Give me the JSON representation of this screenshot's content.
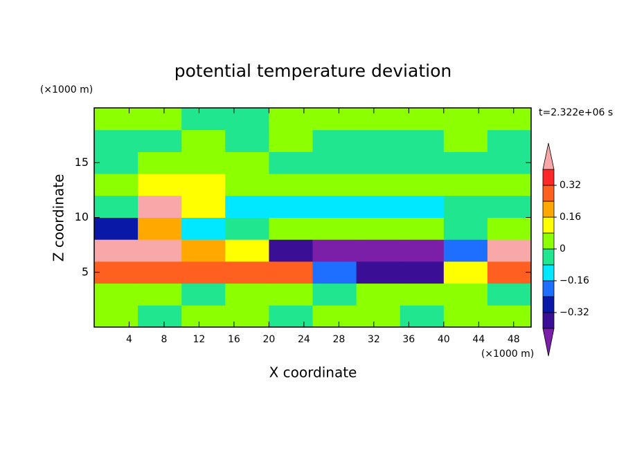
{
  "chart_data": {
    "type": "contour",
    "title": "potential temperature deviation",
    "xlabel": "X coordinate",
    "ylabel": "Z coordinate",
    "xunits": "(×1000 m)",
    "yunits": "(×1000 m)",
    "annotation": "t=2.322e+06 s",
    "xlim": [
      0,
      50
    ],
    "ylim": [
      0,
      20
    ],
    "xticks": [
      4,
      8,
      12,
      16,
      20,
      24,
      28,
      32,
      36,
      40,
      44,
      48
    ],
    "yticks": [
      5,
      10,
      15
    ],
    "x": [
      2.5,
      7.5,
      12.5,
      17.5,
      22.5,
      27.5,
      32.5,
      37.5,
      42.5,
      47.5
    ],
    "z": [
      1,
      3,
      5,
      7,
      9,
      11,
      13,
      15,
      17,
      19
    ],
    "values": [
      [
        0.03,
        -0.02,
        0.03,
        0.03,
        -0.02,
        0.03,
        0.03,
        -0.02,
        0.03,
        0.03
      ],
      [
        0.03,
        0.03,
        -0.02,
        0.03,
        0.03,
        -0.02,
        0.03,
        0.03,
        0.03,
        -0.02
      ],
      [
        0.3,
        0.3,
        0.3,
        0.3,
        0.25,
        -0.2,
        -0.35,
        -0.38,
        0.1,
        0.3
      ],
      [
        0.42,
        0.42,
        0.2,
        0.1,
        -0.36,
        -0.42,
        -0.42,
        -0.42,
        -0.2,
        0.42
      ],
      [
        -0.28,
        0.2,
        -0.1,
        -0.05,
        0.02,
        0.03,
        0.02,
        0.02,
        -0.05,
        0.05
      ],
      [
        -0.05,
        0.42,
        0.1,
        -0.1,
        -0.12,
        -0.15,
        -0.15,
        -0.12,
        -0.08,
        -0.05
      ],
      [
        0.02,
        0.12,
        0.1,
        0.05,
        0.03,
        0.03,
        0.04,
        0.04,
        0.03,
        0.02
      ],
      [
        -0.04,
        0.05,
        0.03,
        0.04,
        -0.03,
        -0.02,
        -0.03,
        -0.03,
        -0.03,
        -0.04
      ],
      [
        -0.03,
        -0.03,
        0.04,
        -0.03,
        0.04,
        -0.03,
        -0.03,
        -0.03,
        0.04,
        -0.03
      ],
      [
        0.04,
        0.04,
        -0.03,
        -0.03,
        0.04,
        0.04,
        0.04,
        0.04,
        0.04,
        0.04
      ]
    ],
    "levels": [
      -0.4,
      -0.32,
      -0.24,
      -0.16,
      -0.08,
      0,
      0.08,
      0.16,
      0.24,
      0.32,
      0.4
    ],
    "colors": [
      "#7b1fa8",
      "#3a0f96",
      "#0a18a8",
      "#1e6eff",
      "#00e8ff",
      "#20e690",
      "#8cff00",
      "#ffff00",
      "#ffa800",
      "#ff6020",
      "#ff2828",
      "#f8a8a8"
    ],
    "cbar_ticks": [
      {
        "value": -0.32,
        "label": "−0.32"
      },
      {
        "value": -0.16,
        "label": "−0.16"
      },
      0,
      0.16,
      0.32
    ]
  }
}
